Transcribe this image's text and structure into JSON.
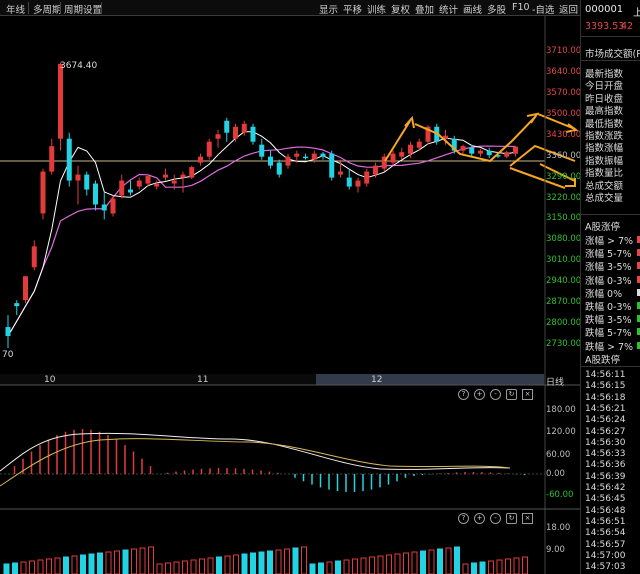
{
  "toolbar": {
    "left": [
      "年线",
      "多周期",
      "周期设置"
    ],
    "right": [
      "显示",
      "平移",
      "训练",
      "复权",
      "叠加",
      "统计",
      "画线",
      "多股",
      "F10",
      "-自选",
      "返回"
    ]
  },
  "right_panel": {
    "code": "000001",
    "code_suffix": "上",
    "price": "3393.53",
    "change": "42",
    "market_turnover": "市场成交额(P",
    "index_items": [
      "最新指数",
      "今日开盘",
      "昨日收盘",
      "最高指数",
      "最低指数",
      "指数涨跌",
      "指数涨幅",
      "指数振幅",
      "指数量比",
      "总成交额",
      "总成交量"
    ],
    "stat_header": "A股涨停",
    "stat_items": [
      "涨幅 > 7%",
      "涨幅 5-7%",
      "涨幅 3-5%",
      "涨幅 0-3%",
      "涨幅 0%",
      "跌幅 0-3%",
      "跌幅 3-5%",
      "跌幅 5-7%",
      "跌幅 > 7%"
    ],
    "stat_footer": "A股跌停",
    "ticks": [
      "14:56:11",
      "14:56:15",
      "14:56:18",
      "14:56:21",
      "14:56:24",
      "14:56:27",
      "14:56:30",
      "14:56:33",
      "14:56:36",
      "14:56:39",
      "14:56:42",
      "14:56:45",
      "14:56:48",
      "14:56:51",
      "14:56:54",
      "14:56:57",
      "14:57:00",
      "14:57:03"
    ]
  },
  "price_axis": {
    "labels": [
      "3710.00",
      "3640.00",
      "3570.00",
      "3500.00",
      "3430.00",
      "3360.00",
      "3290.00",
      "3220.00",
      "3150.00",
      "3080.00",
      "3010.00",
      "2940.00",
      "2870.00",
      "2800.00",
      "2730.00"
    ],
    "red_labels": [
      "3710.00",
      "3640.00",
      "3570.00",
      "3500.00",
      "3430.00"
    ],
    "green_labels": [
      "3290.00",
      "3220.00",
      "3150.00",
      "3080.00",
      "3010.00",
      "2940.00",
      "2870.00",
      "2800.00",
      "2730.00"
    ]
  },
  "annotations": {
    "high": "3674.40",
    "low": "70"
  },
  "x_axis": {
    "labels": [
      "10",
      "11",
      "12"
    ],
    "period": "日线"
  },
  "macd": {
    "labels": [
      "180.00",
      "120.00",
      "60.00",
      "0.00",
      "-60.00"
    ]
  },
  "volume": {
    "labels": [
      "18.00",
      "9.00"
    ]
  },
  "colors": {
    "up": "#e33b3b",
    "down": "#24d3e3",
    "ma5": "#ffffff",
    "ma10": "#e06be0",
    "arrow": "#f5a623",
    "baseline": "#c9b98a"
  },
  "tools": [
    "?",
    "+",
    "-",
    "gear",
    "refresh",
    "close"
  ],
  "candles": [
    {
      "o": 2790,
      "h": 2830,
      "l": 2720,
      "c": 2760
    },
    {
      "o": 2870,
      "h": 2880,
      "l": 2830,
      "c": 2860
    },
    {
      "o": 2880,
      "h": 2960,
      "l": 2870,
      "c": 2960
    },
    {
      "o": 2990,
      "h": 3080,
      "l": 2980,
      "c": 3060
    },
    {
      "o": 3170,
      "h": 3320,
      "l": 3150,
      "c": 3310
    },
    {
      "o": 3310,
      "h": 3420,
      "l": 3300,
      "c": 3395
    },
    {
      "o": 3420,
      "h": 3674.4,
      "l": 3380,
      "c": 3670
    },
    {
      "o": 3420,
      "h": 3440,
      "l": 3260,
      "c": 3280
    },
    {
      "o": 3280,
      "h": 3330,
      "l": 3200,
      "c": 3300
    },
    {
      "o": 3300,
      "h": 3310,
      "l": 3230,
      "c": 3250
    },
    {
      "o": 3270,
      "h": 3280,
      "l": 3180,
      "c": 3200
    },
    {
      "o": 3200,
      "h": 3240,
      "l": 3150,
      "c": 3180
    },
    {
      "o": 3170,
      "h": 3230,
      "l": 3160,
      "c": 3220
    },
    {
      "o": 3230,
      "h": 3300,
      "l": 3220,
      "c": 3280
    },
    {
      "o": 3250,
      "h": 3280,
      "l": 3230,
      "c": 3240
    },
    {
      "o": 3260,
      "h": 3290,
      "l": 3250,
      "c": 3280
    },
    {
      "o": 3270,
      "h": 3300,
      "l": 3260,
      "c": 3295
    },
    {
      "o": 3260,
      "h": 3280,
      "l": 3250,
      "c": 3270
    },
    {
      "o": 3290,
      "h": 3320,
      "l": 3280,
      "c": 3300
    },
    {
      "o": 3270,
      "h": 3300,
      "l": 3250,
      "c": 3280
    },
    {
      "o": 3290,
      "h": 3310,
      "l": 3240,
      "c": 3300
    },
    {
      "o": 3290,
      "h": 3330,
      "l": 3285,
      "c": 3325
    },
    {
      "o": 3340,
      "h": 3370,
      "l": 3330,
      "c": 3360
    },
    {
      "o": 3360,
      "h": 3420,
      "l": 3350,
      "c": 3410
    },
    {
      "o": 3420,
      "h": 3450,
      "l": 3390,
      "c": 3435
    },
    {
      "o": 3480,
      "h": 3490,
      "l": 3410,
      "c": 3440
    },
    {
      "o": 3420,
      "h": 3470,
      "l": 3410,
      "c": 3460
    },
    {
      "o": 3440,
      "h": 3480,
      "l": 3430,
      "c": 3470
    },
    {
      "o": 3460,
      "h": 3470,
      "l": 3400,
      "c": 3410
    },
    {
      "o": 3400,
      "h": 3420,
      "l": 3350,
      "c": 3360
    },
    {
      "o": 3360,
      "h": 3380,
      "l": 3320,
      "c": 3330
    },
    {
      "o": 3340,
      "h": 3350,
      "l": 3290,
      "c": 3300
    },
    {
      "o": 3330,
      "h": 3370,
      "l": 3320,
      "c": 3360
    },
    {
      "o": 3360,
      "h": 3380,
      "l": 3340,
      "c": 3370
    },
    {
      "o": 3360,
      "h": 3370,
      "l": 3350,
      "c": 3355
    },
    {
      "o": 3350,
      "h": 3380,
      "l": 3340,
      "c": 3370
    },
    {
      "o": 3370,
      "h": 3375,
      "l": 3350,
      "c": 3360
    },
    {
      "o": 3370,
      "h": 3380,
      "l": 3280,
      "c": 3290
    },
    {
      "o": 3300,
      "h": 3350,
      "l": 3290,
      "c": 3310
    },
    {
      "o": 3290,
      "h": 3320,
      "l": 3250,
      "c": 3260
    },
    {
      "o": 3260,
      "h": 3290,
      "l": 3240,
      "c": 3280
    },
    {
      "o": 3270,
      "h": 3320,
      "l": 3260,
      "c": 3310
    },
    {
      "o": 3300,
      "h": 3340,
      "l": 3290,
      "c": 3330
    },
    {
      "o": 3320,
      "h": 3370,
      "l": 3310,
      "c": 3360
    },
    {
      "o": 3340,
      "h": 3380,
      "l": 3330,
      "c": 3370
    },
    {
      "o": 3360,
      "h": 3390,
      "l": 3350,
      "c": 3375
    },
    {
      "o": 3370,
      "h": 3410,
      "l": 3355,
      "c": 3400
    },
    {
      "o": 3390,
      "h": 3420,
      "l": 3380,
      "c": 3410
    },
    {
      "o": 3410,
      "h": 3465,
      "l": 3400,
      "c": 3460
    },
    {
      "o": 3460,
      "h": 3470,
      "l": 3400,
      "c": 3410
    },
    {
      "o": 3420,
      "h": 3450,
      "l": 3400,
      "c": 3430
    },
    {
      "o": 3420,
      "h": 3430,
      "l": 3370,
      "c": 3380
    },
    {
      "o": 3380,
      "h": 3400,
      "l": 3370,
      "c": 3395
    },
    {
      "o": 3390,
      "h": 3400,
      "l": 3360,
      "c": 3370
    },
    {
      "o": 3370,
      "h": 3385,
      "l": 3360,
      "c": 3380
    },
    {
      "o": 3380,
      "h": 3390,
      "l": 3355,
      "c": 3365
    },
    {
      "o": 3365,
      "h": 3375,
      "l": 3355,
      "c": 3360
    },
    {
      "o": 3360,
      "h": 3380,
      "l": 3355,
      "c": 3375
    },
    {
      "o": 3370,
      "h": 3395,
      "l": 3360,
      "c": 3393.53
    }
  ]
}
